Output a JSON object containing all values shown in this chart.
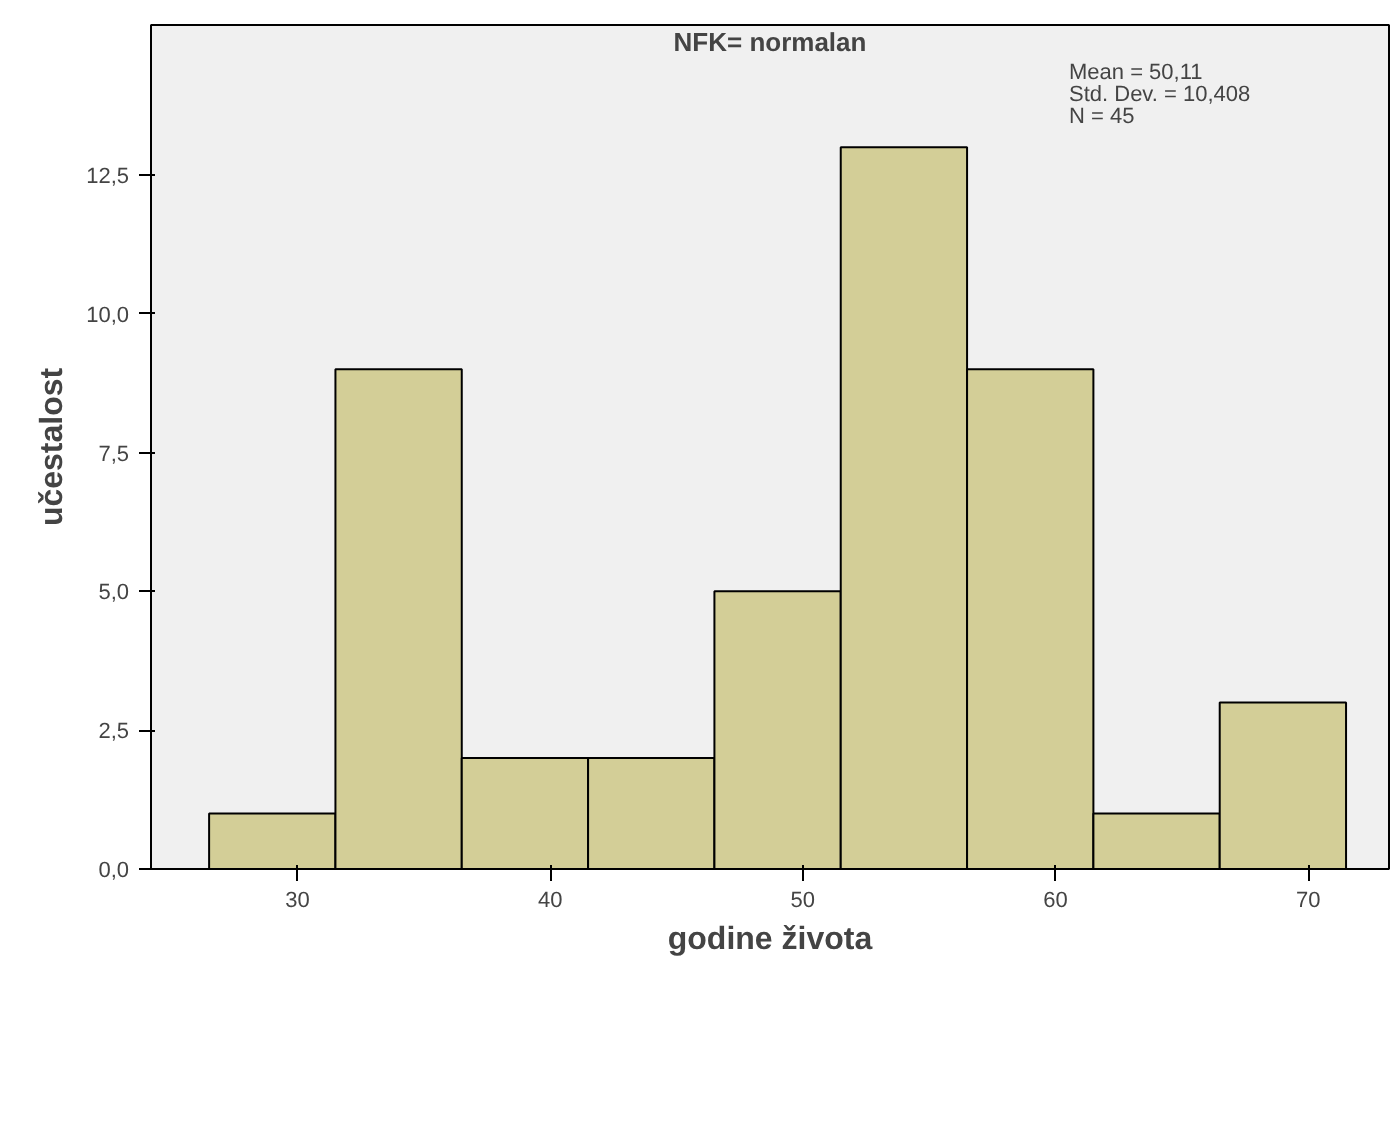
{
  "chart_data": {
    "type": "histogram",
    "title": "NFK= normalan",
    "xlabel": "godine života",
    "ylabel": "učestalost",
    "bins": [
      26.5,
      31.5,
      36.5,
      41.5,
      46.5,
      51.5,
      56.5,
      61.5,
      66.5,
      71.5
    ],
    "values": [
      1,
      9,
      2,
      2,
      5,
      13,
      9,
      1,
      3
    ],
    "color": "#d3ce97",
    "xlim": [
      24.2,
      73.2
    ],
    "xticks": [
      30,
      40,
      50,
      60,
      70
    ],
    "ylim": [
      0,
      15.2
    ],
    "yticks": [
      {
        "value": 0,
        "label": "0,0"
      },
      {
        "value": 2.5,
        "label": "2,5"
      },
      {
        "value": 5,
        "label": "5,0"
      },
      {
        "value": 7.5,
        "label": "7,5"
      },
      {
        "value": 10,
        "label": "10,0"
      },
      {
        "value": 12.5,
        "label": "12,5"
      }
    ],
    "grid": false,
    "annotations": [
      "Mean = 50,11",
      "Std. Dev. = 10,408",
      "N = 45"
    ]
  }
}
